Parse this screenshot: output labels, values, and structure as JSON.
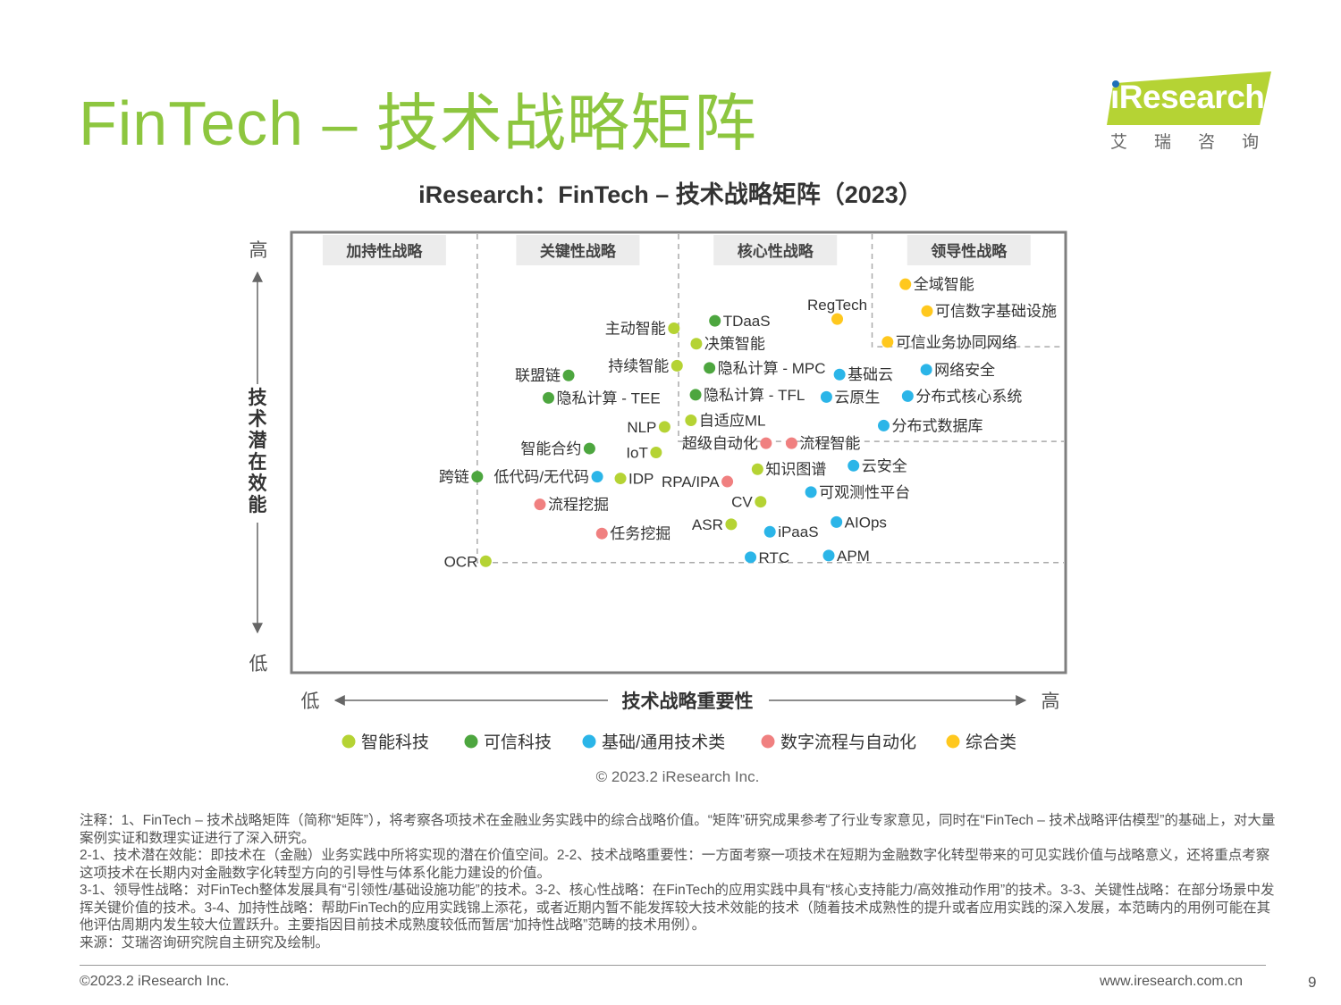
{
  "page": {
    "title": "FinTech – 技术战略矩阵",
    "copyright": "© 2023.2 iResearch Inc.",
    "footer_left": "©2023.2 iResearch Inc.",
    "footer_right": "www.iresearch.com.cn",
    "page_number": "9"
  },
  "logo": {
    "text": "iResearch",
    "cn": "艾瑞咨询"
  },
  "footnotes": [
    "注释：1、FinTech – 技术战略矩阵（简称“矩阵”），将考察各项技术在金融业务实践中的综合战略价值。“矩阵”研究成果参考了行业专家意见，同时在“FinTech – 技术战略评估模型”的基础上，对大量案例实证和数理实证进行了深入研究。",
    "2-1、技术潜在效能：即技术在（金融）业务实践中所将实现的潜在价值空间。2-2、技术战略重要性：一方面考察一项技术在短期为金融数字化转型带来的可见实践价值与战略意义，还将重点考察这项技术在长期内对金融数字化转型方向的引导性与体系化能力建设的价值。",
    "3-1、领导性战略：对FinTech整体发展具有“引领性/基础设施功能”的技术。3-2、核心性战略：在FinTech的应用实践中具有“核心支持能力/高效推动作用”的技术。3-3、关键性战略：在部分场景中发挥关键价值的技术。3-4、加持性战略：帮助FinTech的应用实践锦上添花，或者近期内暂不能发挥较大技术效能的技术（随着技术成熟性的提升或者应用实践的深入发展，本范畴内的用例可能在其他评估周期内发生较大位置跃升。主要指因目前技术成熟度较低而暂居“加持性战略”范畴的技术用例）。",
    "来源：艾瑞咨询研究院自主研究及绘制。"
  ],
  "chart_data": {
    "type": "scatter",
    "title": "iResearch：FinTech – 技术战略矩阵（2023）",
    "xlabel": "技术战略重要性",
    "ylabel": "技术潜在效能",
    "x_low": "低",
    "x_high": "高",
    "y_low": "低",
    "y_high": "高",
    "xlim": [
      0,
      100
    ],
    "ylim": [
      0,
      100
    ],
    "grid": false,
    "legend_position": "bottom",
    "regions": [
      {
        "name": "加持性战略",
        "x_max": 24
      },
      {
        "name": "关键性战略",
        "x_max": 50
      },
      {
        "name": "核心性战略",
        "x_max": 75
      },
      {
        "name": "领导性战略",
        "x_max": 100
      }
    ],
    "categories": [
      {
        "key": "ai",
        "name": "智能科技",
        "color": "#b5d334"
      },
      {
        "key": "trust",
        "name": "可信科技",
        "color": "#4da63f"
      },
      {
        "key": "infra",
        "name": "基础/通用技术类",
        "color": "#2bb5e8"
      },
      {
        "key": "flow",
        "name": "数字流程与自动化",
        "color": "#f08080"
      },
      {
        "key": "general",
        "name": "综合类",
        "color": "#ffc81e"
      }
    ],
    "points": [
      {
        "label": "全域智能",
        "cat": "general",
        "x": 79.3,
        "y": 88.2
      },
      {
        "label": "可信数字基础设施",
        "cat": "general",
        "x": 82.1,
        "y": 82.1
      },
      {
        "label": "RegTech",
        "cat": "general",
        "x": 70.5,
        "y": 80.3
      },
      {
        "label": "可信业务协同网络",
        "cat": "general",
        "x": 77.0,
        "y": 75.1
      },
      {
        "label": "TDaaS",
        "cat": "trust",
        "x": 54.7,
        "y": 79.9
      },
      {
        "label": "主动智能",
        "cat": "ai",
        "x": 49.4,
        "y": 78.2
      },
      {
        "label": "决策智能",
        "cat": "ai",
        "x": 52.3,
        "y": 74.7
      },
      {
        "label": "持续智能",
        "cat": "ai",
        "x": 49.8,
        "y": 69.7
      },
      {
        "label": "隐私计算 - MPC",
        "cat": "trust",
        "x": 54.0,
        "y": 69.2
      },
      {
        "label": "基础云",
        "cat": "infra",
        "x": 70.8,
        "y": 67.7
      },
      {
        "label": "网络安全",
        "cat": "infra",
        "x": 82.0,
        "y": 68.8
      },
      {
        "label": "联盟链",
        "cat": "trust",
        "x": 35.8,
        "y": 67.5
      },
      {
        "label": "隐私计算 - TEE",
        "cat": "trust",
        "x": 33.2,
        "y": 62.4
      },
      {
        "label": "隐私计算 - TFL",
        "cat": "trust",
        "x": 52.2,
        "y": 63.1
      },
      {
        "label": "云原生",
        "cat": "infra",
        "x": 69.1,
        "y": 62.6
      },
      {
        "label": "分布式核心系统",
        "cat": "infra",
        "x": 79.6,
        "y": 62.8
      },
      {
        "label": "NLP",
        "cat": "ai",
        "x": 48.2,
        "y": 55.8
      },
      {
        "label": "自适应ML",
        "cat": "ai",
        "x": 51.6,
        "y": 57.3
      },
      {
        "label": "分布式数据库",
        "cat": "infra",
        "x": 76.5,
        "y": 56.1
      },
      {
        "label": "智能合约",
        "cat": "trust",
        "x": 38.5,
        "y": 50.9
      },
      {
        "label": "IoT",
        "cat": "ai",
        "x": 47.1,
        "y": 50.0
      },
      {
        "label": "超级自动化",
        "cat": "flow",
        "x": 61.3,
        "y": 52.1
      },
      {
        "label": "流程智能",
        "cat": "flow",
        "x": 64.6,
        "y": 52.1
      },
      {
        "label": "云安全",
        "cat": "infra",
        "x": 72.6,
        "y": 47.0
      },
      {
        "label": "知识图谱",
        "cat": "ai",
        "x": 60.2,
        "y": 46.2
      },
      {
        "label": "跨链",
        "cat": "trust",
        "x": 24.0,
        "y": 44.5
      },
      {
        "label": "低代码/无代码",
        "cat": "infra",
        "x": 39.5,
        "y": 44.5
      },
      {
        "label": "IDP",
        "cat": "ai",
        "x": 42.5,
        "y": 44.1
      },
      {
        "label": "RPA/IPA",
        "cat": "flow",
        "x": 56.3,
        "y": 43.4
      },
      {
        "label": "可观测性平台",
        "cat": "infra",
        "x": 67.1,
        "y": 41.0
      },
      {
        "label": "CV",
        "cat": "ai",
        "x": 60.6,
        "y": 38.8
      },
      {
        "label": "流程挖掘",
        "cat": "flow",
        "x": 32.1,
        "y": 38.2
      },
      {
        "label": "ASR",
        "cat": "ai",
        "x": 56.8,
        "y": 33.7
      },
      {
        "label": "AIOps",
        "cat": "infra",
        "x": 70.4,
        "y": 34.2
      },
      {
        "label": "iPaaS",
        "cat": "infra",
        "x": 61.8,
        "y": 32.0
      },
      {
        "label": "任务挖掘",
        "cat": "flow",
        "x": 40.1,
        "y": 31.6
      },
      {
        "label": "RTC",
        "cat": "infra",
        "x": 59.3,
        "y": 26.2
      },
      {
        "label": "APM",
        "cat": "infra",
        "x": 69.4,
        "y": 26.6
      },
      {
        "label": "OCR",
        "cat": "ai",
        "x": 25.1,
        "y": 25.3
      }
    ]
  }
}
